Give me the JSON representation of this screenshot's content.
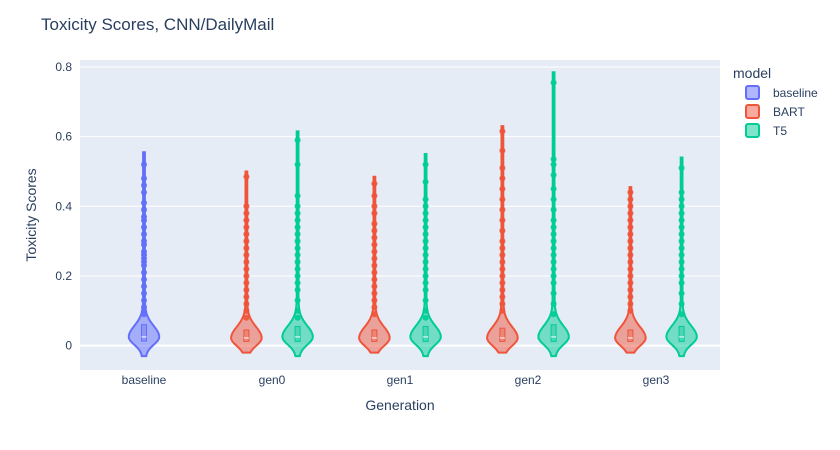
{
  "chart_data": {
    "type": "violin",
    "title": "Toxicity Scores, CNN/DailyMail",
    "xlabel": "Generation",
    "ylabel": "Toxicity Scores",
    "categories": [
      "baseline",
      "gen0",
      "gen1",
      "gen2",
      "gen3"
    ],
    "ylim": [
      -0.07,
      0.82
    ],
    "yticks": [
      0,
      0.2,
      0.4,
      0.6,
      0.8
    ],
    "ytick_labels": [
      "0",
      "0.2",
      "0.4",
      "0.6",
      "0.8"
    ],
    "legend": {
      "title": "model",
      "position": "right"
    },
    "series": [
      {
        "name": "baseline",
        "color": "#636efa",
        "groups": [
          {
            "category": "baseline",
            "min": -0.03,
            "max": 0.555,
            "median": 0.025,
            "q1": 0.013,
            "q3": 0.06,
            "points": [
              0.52,
              0.48,
              0.46,
              0.44,
              0.41,
              0.39,
              0.37,
              0.36,
              0.34,
              0.32,
              0.3,
              0.29,
              0.27,
              0.26,
              0.25,
              0.24,
              0.23,
              0.21,
              0.19,
              0.17,
              0.15,
              0.13,
              0.11,
              0.1,
              0.09
            ]
          }
        ]
      },
      {
        "name": "BART",
        "color": "#ef553b",
        "groups": [
          {
            "category": "gen0",
            "min": -0.02,
            "max": 0.5,
            "median": 0.022,
            "q1": 0.012,
            "q3": 0.045,
            "points": [
              0.485,
              0.4,
              0.38,
              0.36,
              0.34,
              0.32,
              0.3,
              0.28,
              0.26,
              0.24,
              0.22,
              0.2,
              0.18,
              0.16,
              0.14,
              0.12,
              0.1,
              0.08
            ]
          },
          {
            "category": "gen1",
            "min": -0.02,
            "max": 0.485,
            "median": 0.022,
            "q1": 0.012,
            "q3": 0.045,
            "points": [
              0.465,
              0.43,
              0.4,
              0.38,
              0.35,
              0.33,
              0.31,
              0.29,
              0.27,
              0.25,
              0.23,
              0.21,
              0.19,
              0.17,
              0.15,
              0.13,
              0.11,
              0.09
            ]
          },
          {
            "category": "gen2",
            "min": -0.02,
            "max": 0.63,
            "median": 0.022,
            "q1": 0.012,
            "q3": 0.05,
            "points": [
              0.615,
              0.56,
              0.51,
              0.48,
              0.45,
              0.42,
              0.39,
              0.36,
              0.33,
              0.3,
              0.28,
              0.26,
              0.24,
              0.22,
              0.2,
              0.18,
              0.16,
              0.14,
              0.12,
              0.1
            ]
          },
          {
            "category": "gen3",
            "min": -0.02,
            "max": 0.455,
            "median": 0.022,
            "q1": 0.012,
            "q3": 0.045,
            "points": [
              0.44,
              0.42,
              0.4,
              0.38,
              0.36,
              0.34,
              0.32,
              0.3,
              0.28,
              0.26,
              0.24,
              0.22,
              0.2,
              0.18,
              0.16,
              0.14,
              0.12,
              0.1
            ]
          }
        ]
      },
      {
        "name": "T5",
        "color": "#00cc96",
        "groups": [
          {
            "category": "gen0",
            "min": -0.03,
            "max": 0.615,
            "median": 0.025,
            "q1": 0.012,
            "q3": 0.055,
            "points": [
              0.59,
              0.52,
              0.43,
              0.4,
              0.38,
              0.36,
              0.34,
              0.32,
              0.3,
              0.28,
              0.26,
              0.24,
              0.22,
              0.2,
              0.18,
              0.16,
              0.13,
              0.1,
              0.08
            ]
          },
          {
            "category": "gen1",
            "min": -0.03,
            "max": 0.55,
            "median": 0.025,
            "q1": 0.012,
            "q3": 0.055,
            "points": [
              0.52,
              0.47,
              0.42,
              0.4,
              0.38,
              0.36,
              0.34,
              0.32,
              0.3,
              0.28,
              0.26,
              0.24,
              0.22,
              0.2,
              0.18,
              0.16,
              0.13,
              0.1,
              0.08
            ]
          },
          {
            "category": "gen2",
            "min": -0.03,
            "max": 0.785,
            "median": 0.025,
            "q1": 0.012,
            "q3": 0.06,
            "points": [
              0.755,
              0.535,
              0.52,
              0.49,
              0.45,
              0.42,
              0.39,
              0.36,
              0.34,
              0.32,
              0.3,
              0.28,
              0.26,
              0.24,
              0.22,
              0.2,
              0.18,
              0.15,
              0.12,
              0.09
            ]
          },
          {
            "category": "gen3",
            "min": -0.03,
            "max": 0.54,
            "median": 0.025,
            "q1": 0.012,
            "q3": 0.055,
            "points": [
              0.51,
              0.44,
              0.42,
              0.4,
              0.38,
              0.36,
              0.34,
              0.32,
              0.3,
              0.28,
              0.26,
              0.24,
              0.22,
              0.2,
              0.18,
              0.15,
              0.12,
              0.09
            ]
          }
        ]
      }
    ]
  }
}
